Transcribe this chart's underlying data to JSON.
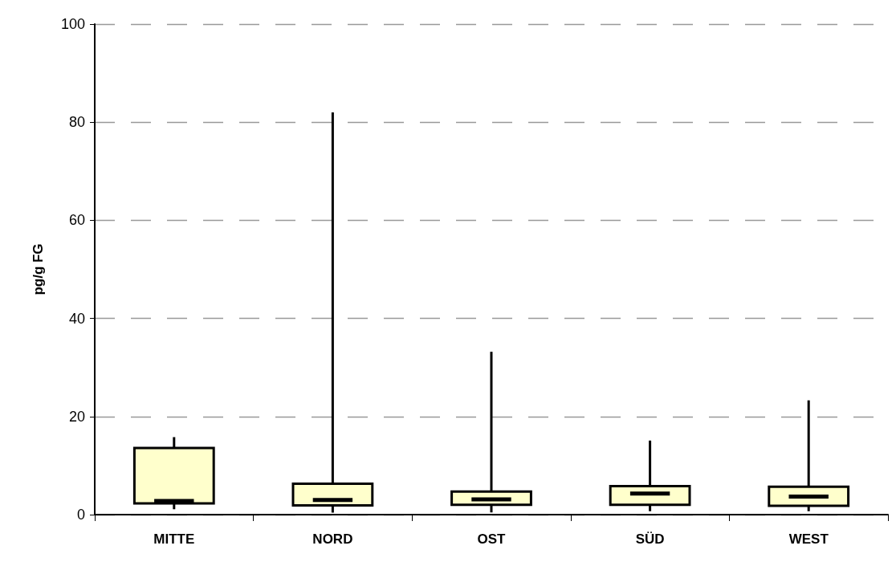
{
  "chart_data": {
    "type": "box",
    "ylabel": "pg/g FG",
    "categories": [
      "MITTE",
      "NORD",
      "OST",
      "SÜD",
      "WEST"
    ],
    "color": "#ffffcc",
    "boxes": [
      {
        "low": 1.1,
        "q1": 2.3,
        "median": 2.8,
        "q3": 13.6,
        "high": 15.8
      },
      {
        "low": 0.4,
        "q1": 1.9,
        "median": 3.0,
        "q3": 6.3,
        "high": 82
      },
      {
        "low": 0.45,
        "q1": 2.0,
        "median": 3.1,
        "q3": 4.7,
        "high": 33.2
      },
      {
        "low": 0.7,
        "q1": 2.0,
        "median": 4.3,
        "q3": 5.8,
        "high": 15.1
      },
      {
        "low": 0.7,
        "q1": 1.8,
        "median": 3.7,
        "q3": 5.7,
        "high": 23.3
      }
    ],
    "ylim": [
      0,
      100
    ],
    "yticks": [
      0,
      20,
      40,
      60,
      80,
      100
    ],
    "grid": "y"
  }
}
